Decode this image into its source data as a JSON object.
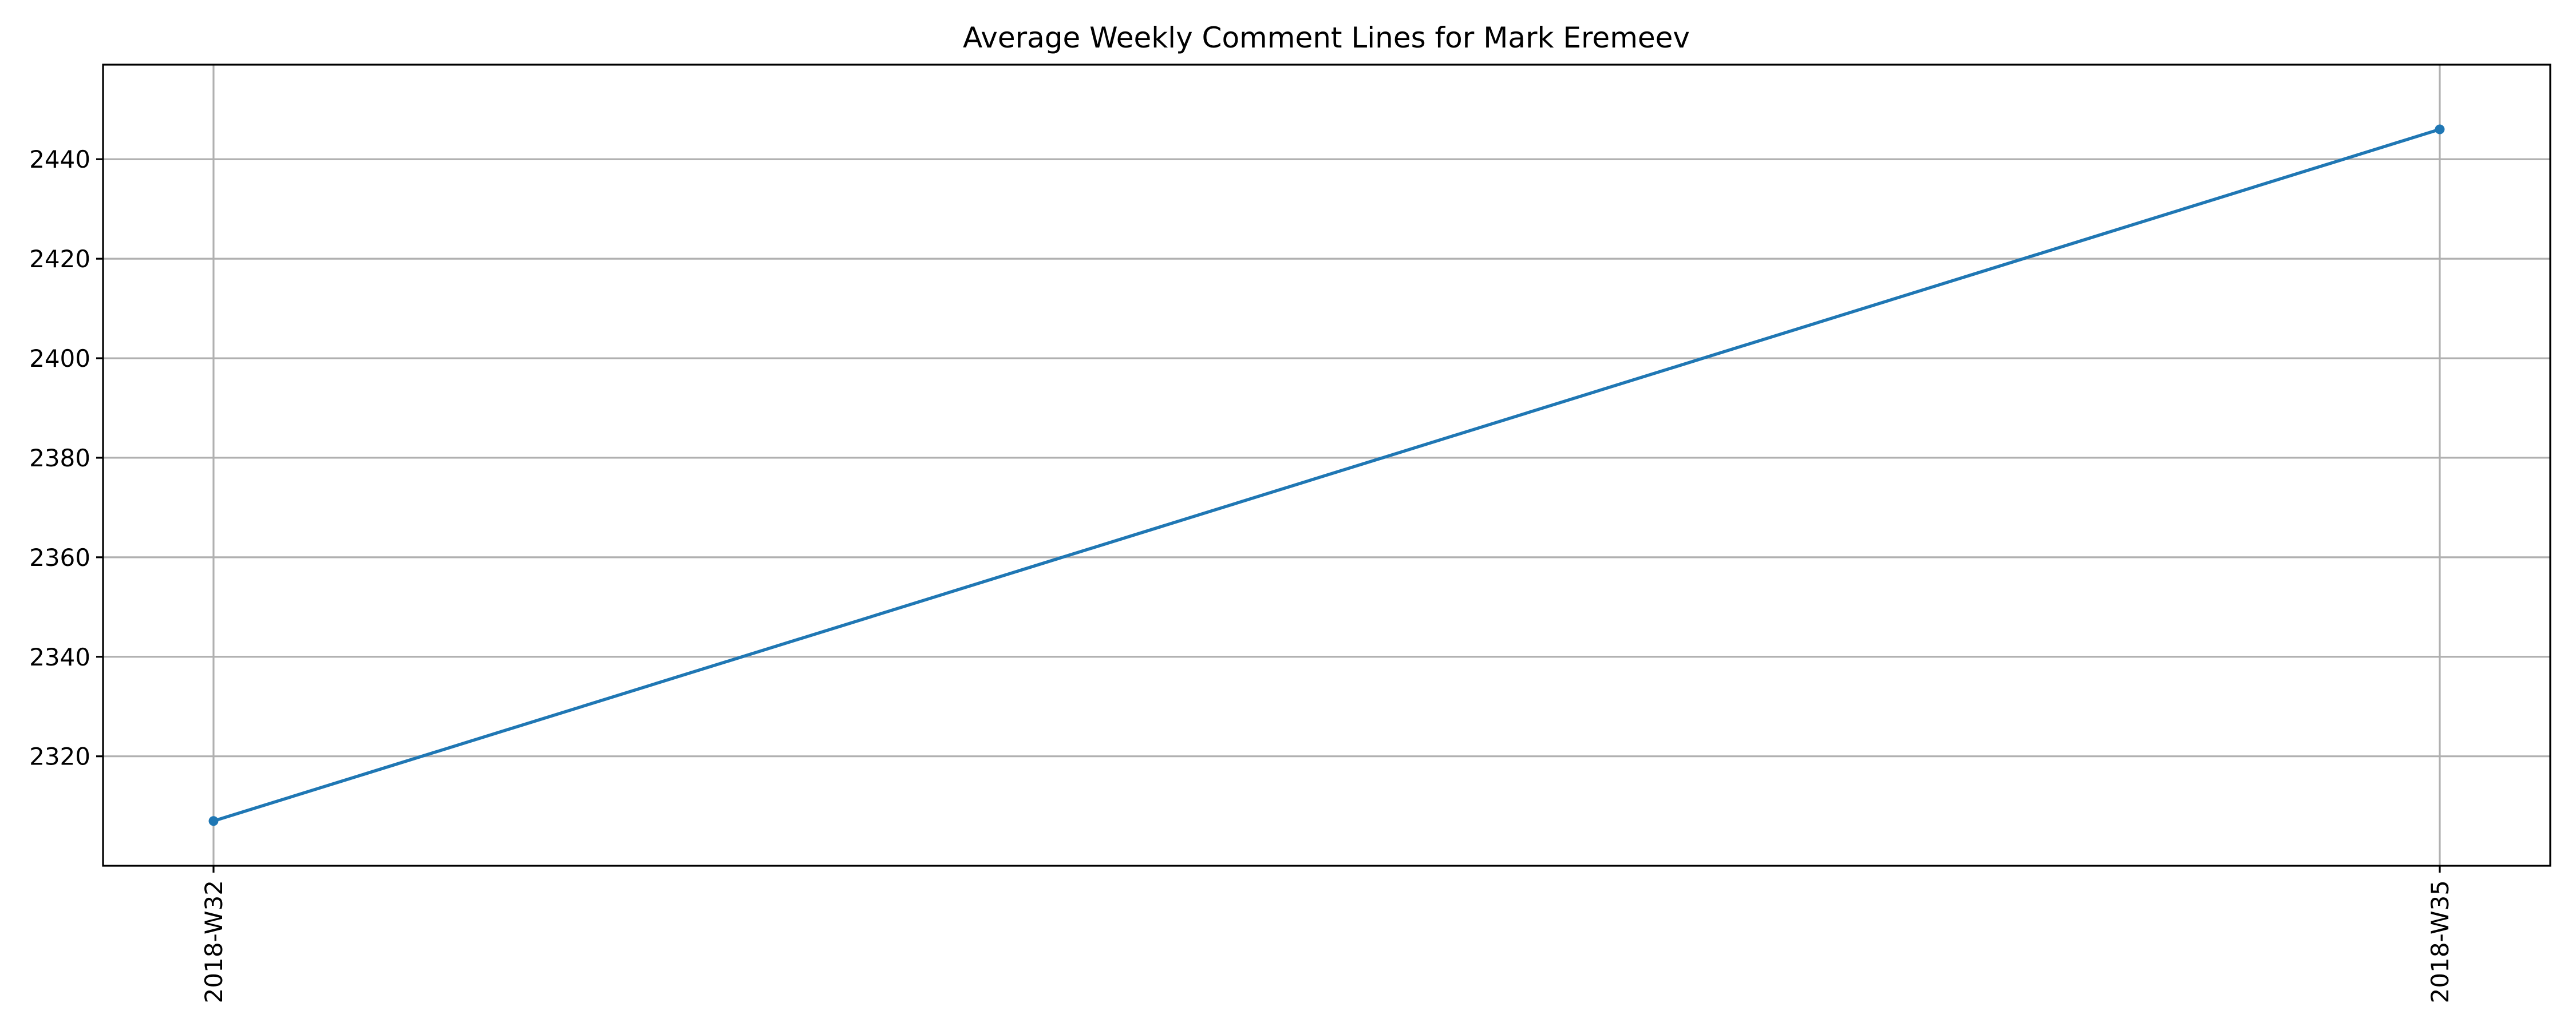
{
  "chart_data": {
    "type": "line",
    "title": "Average Weekly Comment Lines for Mark Eremeev",
    "xlabel": "",
    "ylabel": "",
    "categories": [
      "2018-W32",
      "2018-W35"
    ],
    "series": [
      {
        "values": [
          2307,
          2446
        ],
        "color": "#1f77b4"
      }
    ],
    "ylim": [
      2298,
      2459
    ],
    "yticks": [
      2320,
      2340,
      2360,
      2380,
      2400,
      2420,
      2440
    ],
    "grid": true,
    "legend": "none",
    "x_tick_rotation": "vertical"
  }
}
